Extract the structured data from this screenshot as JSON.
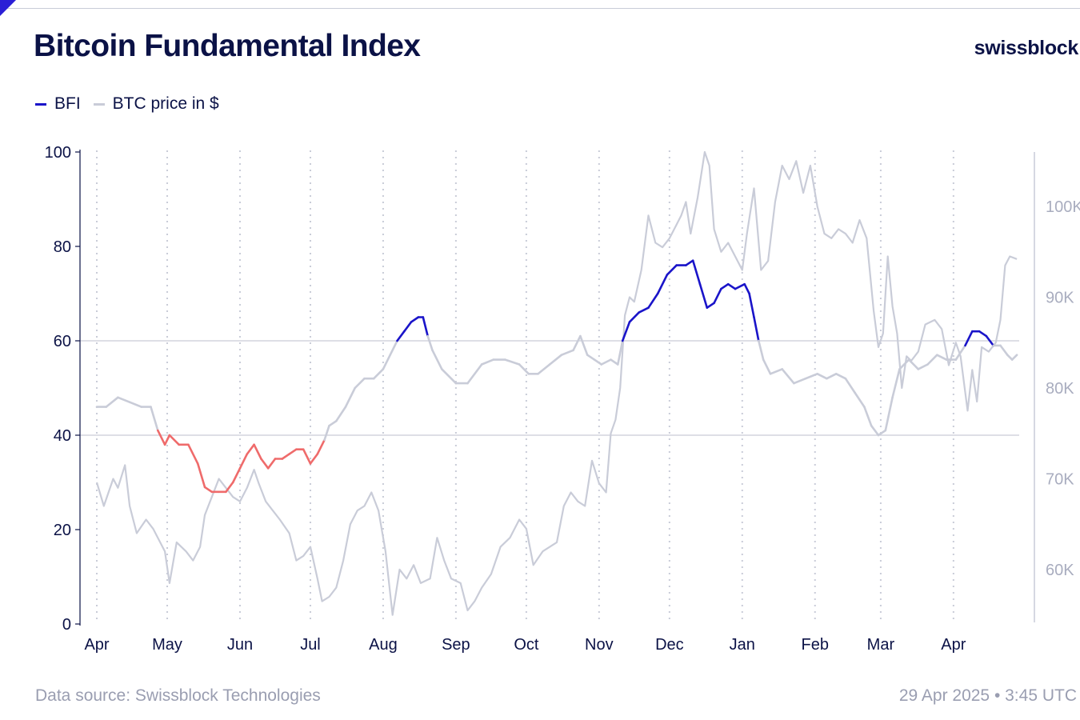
{
  "header": {
    "title": "Bitcoin Fundamental Index",
    "brand": "swissblock"
  },
  "legend": {
    "bfi_label": "BFI",
    "btc_label": "BTC price in $"
  },
  "footer": {
    "source": "Data source: Swissblock Technologies",
    "timestamp": "29 Apr 2025 • 3:45 UTC"
  },
  "colors": {
    "bfi_high": "#1a14c9",
    "bfi_mid": "#c9ccd8",
    "bfi_low": "#ef6b6b",
    "btc": "#c9ccd8",
    "axis_right": "#a9adbf"
  },
  "chart_data": {
    "type": "line",
    "x_ticks": [
      "Apr",
      "May",
      "Jun",
      "Jul",
      "Aug",
      "Sep",
      "Oct",
      "Nov",
      "Dec",
      "Jan",
      "Feb",
      "Mar",
      "Apr"
    ],
    "ylim_left": [
      0,
      100
    ],
    "yticks_left": [
      "0",
      "20",
      "40",
      "60",
      "80",
      "100"
    ],
    "ylim_right": [
      54000,
      106000
    ],
    "yticks_right": [
      {
        "value": 60000,
        "label": "60K"
      },
      {
        "value": 70000,
        "label": "70K"
      },
      {
        "value": 80000,
        "label": "80K"
      },
      {
        "value": 90000,
        "label": "90K"
      },
      {
        "value": 100000,
        "label": "100K"
      }
    ],
    "reference_lines": [
      40,
      60
    ],
    "x_range": [
      "2024-04-01",
      "2025-04-29"
    ],
    "legend_position": "top-left",
    "series": [
      {
        "name": "BFI",
        "axis": "left",
        "points": [
          [
            "2024-04-01",
            46
          ],
          [
            "2024-04-05",
            46
          ],
          [
            "2024-04-10",
            48
          ],
          [
            "2024-04-15",
            47
          ],
          [
            "2024-04-20",
            46
          ],
          [
            "2024-04-24",
            46
          ],
          [
            "2024-04-27",
            41
          ],
          [
            "2024-04-30",
            38
          ],
          [
            "2024-05-02",
            40
          ],
          [
            "2024-05-06",
            38
          ],
          [
            "2024-05-10",
            38
          ],
          [
            "2024-05-14",
            34
          ],
          [
            "2024-05-17",
            29
          ],
          [
            "2024-05-20",
            28
          ],
          [
            "2024-05-23",
            28
          ],
          [
            "2024-05-26",
            28
          ],
          [
            "2024-05-29",
            30
          ],
          [
            "2024-06-01",
            33
          ],
          [
            "2024-06-04",
            36
          ],
          [
            "2024-06-07",
            38
          ],
          [
            "2024-06-10",
            35
          ],
          [
            "2024-06-13",
            33
          ],
          [
            "2024-06-16",
            35
          ],
          [
            "2024-06-19",
            35
          ],
          [
            "2024-06-22",
            36
          ],
          [
            "2024-06-25",
            37
          ],
          [
            "2024-06-28",
            37
          ],
          [
            "2024-07-01",
            34
          ],
          [
            "2024-07-04",
            36
          ],
          [
            "2024-07-07",
            39
          ],
          [
            "2024-07-09",
            42
          ],
          [
            "2024-07-12",
            43
          ],
          [
            "2024-07-16",
            46
          ],
          [
            "2024-07-20",
            50
          ],
          [
            "2024-07-24",
            52
          ],
          [
            "2024-07-28",
            52
          ],
          [
            "2024-08-01",
            54
          ],
          [
            "2024-08-04",
            57
          ],
          [
            "2024-08-07",
            60
          ],
          [
            "2024-08-10",
            62
          ],
          [
            "2024-08-13",
            64
          ],
          [
            "2024-08-16",
            65
          ],
          [
            "2024-08-18",
            65
          ],
          [
            "2024-08-20",
            61
          ],
          [
            "2024-08-22",
            58
          ],
          [
            "2024-08-26",
            54
          ],
          [
            "2024-09-01",
            51
          ],
          [
            "2024-09-06",
            51
          ],
          [
            "2024-09-12",
            55
          ],
          [
            "2024-09-17",
            56
          ],
          [
            "2024-09-22",
            56
          ],
          [
            "2024-09-28",
            55
          ],
          [
            "2024-10-02",
            53
          ],
          [
            "2024-10-06",
            53
          ],
          [
            "2024-10-11",
            55
          ],
          [
            "2024-10-16",
            57
          ],
          [
            "2024-10-21",
            58
          ],
          [
            "2024-10-24",
            61
          ],
          [
            "2024-10-27",
            57
          ],
          [
            "2024-10-30",
            56
          ],
          [
            "2024-11-02",
            55
          ],
          [
            "2024-11-06",
            56
          ],
          [
            "2024-11-09",
            55
          ],
          [
            "2024-11-11",
            60
          ],
          [
            "2024-11-14",
            64
          ],
          [
            "2024-11-18",
            66
          ],
          [
            "2024-11-22",
            67
          ],
          [
            "2024-11-26",
            70
          ],
          [
            "2024-11-30",
            74
          ],
          [
            "2024-12-04",
            76
          ],
          [
            "2024-12-08",
            76
          ],
          [
            "2024-12-11",
            77
          ],
          [
            "2024-12-14",
            72
          ],
          [
            "2024-12-17",
            67
          ],
          [
            "2024-12-20",
            68
          ],
          [
            "2024-12-23",
            71
          ],
          [
            "2024-12-26",
            72
          ],
          [
            "2024-12-29",
            71
          ],
          [
            "2025-01-02",
            72
          ],
          [
            "2025-01-04",
            70
          ],
          [
            "2025-01-06",
            65
          ],
          [
            "2025-01-08",
            60
          ],
          [
            "2025-01-10",
            56
          ],
          [
            "2025-01-13",
            53
          ],
          [
            "2025-01-18",
            54
          ],
          [
            "2025-01-23",
            51
          ],
          [
            "2025-01-28",
            52
          ],
          [
            "2025-02-02",
            53
          ],
          [
            "2025-02-06",
            52
          ],
          [
            "2025-02-10",
            53
          ],
          [
            "2025-02-14",
            52
          ],
          [
            "2025-02-18",
            49
          ],
          [
            "2025-02-22",
            46
          ],
          [
            "2025-02-25",
            42
          ],
          [
            "2025-02-28",
            40
          ],
          [
            "2025-03-03",
            41
          ],
          [
            "2025-03-06",
            48
          ],
          [
            "2025-03-09",
            54
          ],
          [
            "2025-03-13",
            56
          ],
          [
            "2025-03-17",
            54
          ],
          [
            "2025-03-21",
            55
          ],
          [
            "2025-03-25",
            57
          ],
          [
            "2025-03-29",
            56
          ],
          [
            "2025-04-02",
            56
          ],
          [
            "2025-04-06",
            59
          ],
          [
            "2025-04-09",
            62
          ],
          [
            "2025-04-12",
            62
          ],
          [
            "2025-04-15",
            61
          ],
          [
            "2025-04-18",
            59
          ],
          [
            "2025-04-21",
            59
          ],
          [
            "2025-04-24",
            57
          ],
          [
            "2025-04-26",
            56
          ],
          [
            "2025-04-28",
            57
          ]
        ]
      },
      {
        "name": "BTC price in $",
        "axis": "right",
        "points": [
          [
            "2024-04-01",
            69600
          ],
          [
            "2024-04-04",
            67000
          ],
          [
            "2024-04-08",
            70000
          ],
          [
            "2024-04-10",
            69000
          ],
          [
            "2024-04-13",
            71500
          ],
          [
            "2024-04-15",
            67000
          ],
          [
            "2024-04-18",
            64000
          ],
          [
            "2024-04-22",
            65500
          ],
          [
            "2024-04-25",
            64500
          ],
          [
            "2024-04-30",
            62000
          ],
          [
            "2024-05-02",
            58500
          ],
          [
            "2024-05-05",
            63000
          ],
          [
            "2024-05-09",
            62000
          ],
          [
            "2024-05-12",
            61000
          ],
          [
            "2024-05-15",
            62500
          ],
          [
            "2024-05-17",
            66000
          ],
          [
            "2024-05-20",
            68000
          ],
          [
            "2024-05-23",
            70000
          ],
          [
            "2024-05-26",
            69000
          ],
          [
            "2024-05-29",
            68000
          ],
          [
            "2024-06-01",
            67500
          ],
          [
            "2024-06-04",
            69000
          ],
          [
            "2024-06-07",
            71000
          ],
          [
            "2024-06-09",
            69500
          ],
          [
            "2024-06-12",
            67500
          ],
          [
            "2024-06-15",
            66500
          ],
          [
            "2024-06-18",
            65500
          ],
          [
            "2024-06-22",
            64000
          ],
          [
            "2024-06-25",
            61000
          ],
          [
            "2024-06-28",
            61500
          ],
          [
            "2024-07-01",
            62500
          ],
          [
            "2024-07-04",
            59000
          ],
          [
            "2024-07-06",
            56500
          ],
          [
            "2024-07-09",
            57000
          ],
          [
            "2024-07-12",
            58000
          ],
          [
            "2024-07-15",
            61000
          ],
          [
            "2024-07-18",
            65000
          ],
          [
            "2024-07-21",
            66500
          ],
          [
            "2024-07-24",
            67000
          ],
          [
            "2024-07-27",
            68500
          ],
          [
            "2024-07-30",
            66500
          ],
          [
            "2024-08-02",
            62000
          ],
          [
            "2024-08-05",
            55000
          ],
          [
            "2024-08-08",
            60000
          ],
          [
            "2024-08-11",
            59000
          ],
          [
            "2024-08-14",
            60500
          ],
          [
            "2024-08-17",
            58500
          ],
          [
            "2024-08-21",
            59000
          ],
          [
            "2024-08-24",
            63500
          ],
          [
            "2024-08-27",
            61000
          ],
          [
            "2024-08-30",
            59000
          ],
          [
            "2024-09-03",
            58500
          ],
          [
            "2024-09-06",
            55500
          ],
          [
            "2024-09-09",
            56500
          ],
          [
            "2024-09-12",
            58000
          ],
          [
            "2024-09-16",
            59500
          ],
          [
            "2024-09-20",
            62500
          ],
          [
            "2024-09-24",
            63500
          ],
          [
            "2024-09-28",
            65500
          ],
          [
            "2024-10-01",
            64500
          ],
          [
            "2024-10-04",
            60500
          ],
          [
            "2024-10-08",
            62000
          ],
          [
            "2024-10-11",
            62500
          ],
          [
            "2024-10-14",
            63000
          ],
          [
            "2024-10-17",
            67000
          ],
          [
            "2024-10-20",
            68500
          ],
          [
            "2024-10-23",
            67500
          ],
          [
            "2024-10-26",
            67000
          ],
          [
            "2024-10-29",
            72000
          ],
          [
            "2024-11-01",
            69500
          ],
          [
            "2024-11-04",
            68500
          ],
          [
            "2024-11-06",
            75000
          ],
          [
            "2024-11-08",
            76500
          ],
          [
            "2024-11-10",
            80000
          ],
          [
            "2024-11-12",
            88000
          ],
          [
            "2024-11-14",
            90000
          ],
          [
            "2024-11-16",
            89500
          ],
          [
            "2024-11-19",
            93000
          ],
          [
            "2024-11-22",
            99000
          ],
          [
            "2024-11-25",
            96000
          ],
          [
            "2024-11-28",
            95500
          ],
          [
            "2024-12-01",
            96500
          ],
          [
            "2024-12-04",
            98000
          ],
          [
            "2024-12-06",
            99000
          ],
          [
            "2024-12-08",
            100500
          ],
          [
            "2024-12-10",
            97000
          ],
          [
            "2024-12-13",
            101000
          ],
          [
            "2024-12-16",
            106000
          ],
          [
            "2024-12-18",
            104500
          ],
          [
            "2024-12-20",
            97500
          ],
          [
            "2024-12-23",
            95000
          ],
          [
            "2024-12-26",
            96000
          ],
          [
            "2024-12-29",
            94500
          ],
          [
            "2025-01-01",
            93000
          ],
          [
            "2025-01-03",
            97000
          ],
          [
            "2025-01-06",
            102000
          ],
          [
            "2025-01-09",
            93000
          ],
          [
            "2025-01-12",
            94000
          ],
          [
            "2025-01-15",
            100500
          ],
          [
            "2025-01-18",
            104500
          ],
          [
            "2025-01-21",
            103000
          ],
          [
            "2025-01-24",
            105000
          ],
          [
            "2025-01-27",
            101500
          ],
          [
            "2025-01-30",
            104500
          ],
          [
            "2025-02-02",
            100000
          ],
          [
            "2025-02-05",
            97000
          ],
          [
            "2025-02-08",
            96500
          ],
          [
            "2025-02-11",
            97500
          ],
          [
            "2025-02-14",
            97000
          ],
          [
            "2025-02-17",
            96000
          ],
          [
            "2025-02-20",
            98500
          ],
          [
            "2025-02-23",
            96500
          ],
          [
            "2025-02-26",
            88500
          ],
          [
            "2025-02-28",
            84500
          ],
          [
            "2025-03-02",
            86000
          ],
          [
            "2025-03-04",
            94500
          ],
          [
            "2025-03-06",
            89000
          ],
          [
            "2025-03-08",
            86000
          ],
          [
            "2025-03-10",
            80000
          ],
          [
            "2025-03-12",
            83500
          ],
          [
            "2025-03-14",
            83000
          ],
          [
            "2025-03-17",
            84000
          ],
          [
            "2025-03-20",
            87000
          ],
          [
            "2025-03-24",
            87500
          ],
          [
            "2025-03-27",
            86500
          ],
          [
            "2025-03-30",
            82500
          ],
          [
            "2025-04-02",
            85000
          ],
          [
            "2025-04-04",
            83500
          ],
          [
            "2025-04-07",
            77500
          ],
          [
            "2025-04-09",
            82000
          ],
          [
            "2025-04-11",
            78500
          ],
          [
            "2025-04-13",
            84500
          ],
          [
            "2025-04-16",
            84000
          ],
          [
            "2025-04-19",
            85000
          ],
          [
            "2025-04-21",
            87500
          ],
          [
            "2025-04-23",
            93500
          ],
          [
            "2025-04-25",
            94500
          ],
          [
            "2025-04-28",
            94200
          ]
        ]
      }
    ]
  }
}
